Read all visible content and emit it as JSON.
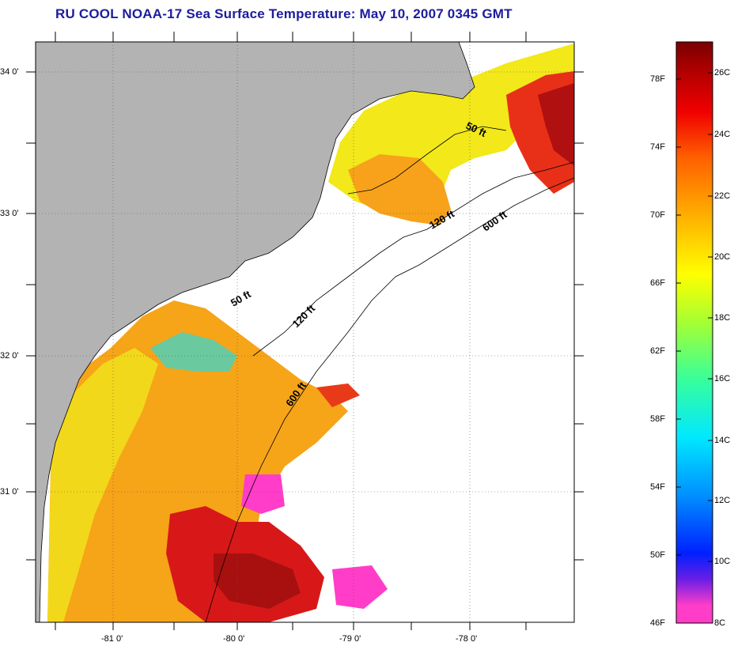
{
  "title": "RU COOL  NOAA-17  Sea Surface Temperature:  May 10, 2007 0345 GMT",
  "map": {
    "lat_labels": [
      "34 0'",
      "33 0'",
      "32 0'",
      "31 0'"
    ],
    "lon_labels": [
      "-81 0'",
      "-80 0'",
      "-79 0'",
      "-78 0'"
    ],
    "isobaths": [
      "50 ft",
      "120 ft",
      "600 ft",
      "50 ft",
      "120 ft",
      "600 ft"
    ],
    "colors": {
      "land": "#b3b3b3",
      "no_data": "#ffffff"
    }
  },
  "colorbar": {
    "fahrenheit_labels": [
      "78F",
      "74F",
      "70F",
      "66F",
      "62F",
      "58F",
      "54F",
      "50F",
      "46F"
    ],
    "celsius_labels": [
      "26C",
      "24C",
      "22C",
      "20C",
      "18C",
      "16C",
      "14C",
      "12C",
      "10C",
      "8C"
    ],
    "stops": [
      "#ff3dc8",
      "#ff3dc8",
      "#6a1ee6",
      "#0020ff",
      "#0090ff",
      "#00e8ff",
      "#38ff9a",
      "#a8ff30",
      "#ffff00",
      "#ffb000",
      "#ff6000",
      "#f00000",
      "#b00000",
      "#7a0000"
    ]
  }
}
